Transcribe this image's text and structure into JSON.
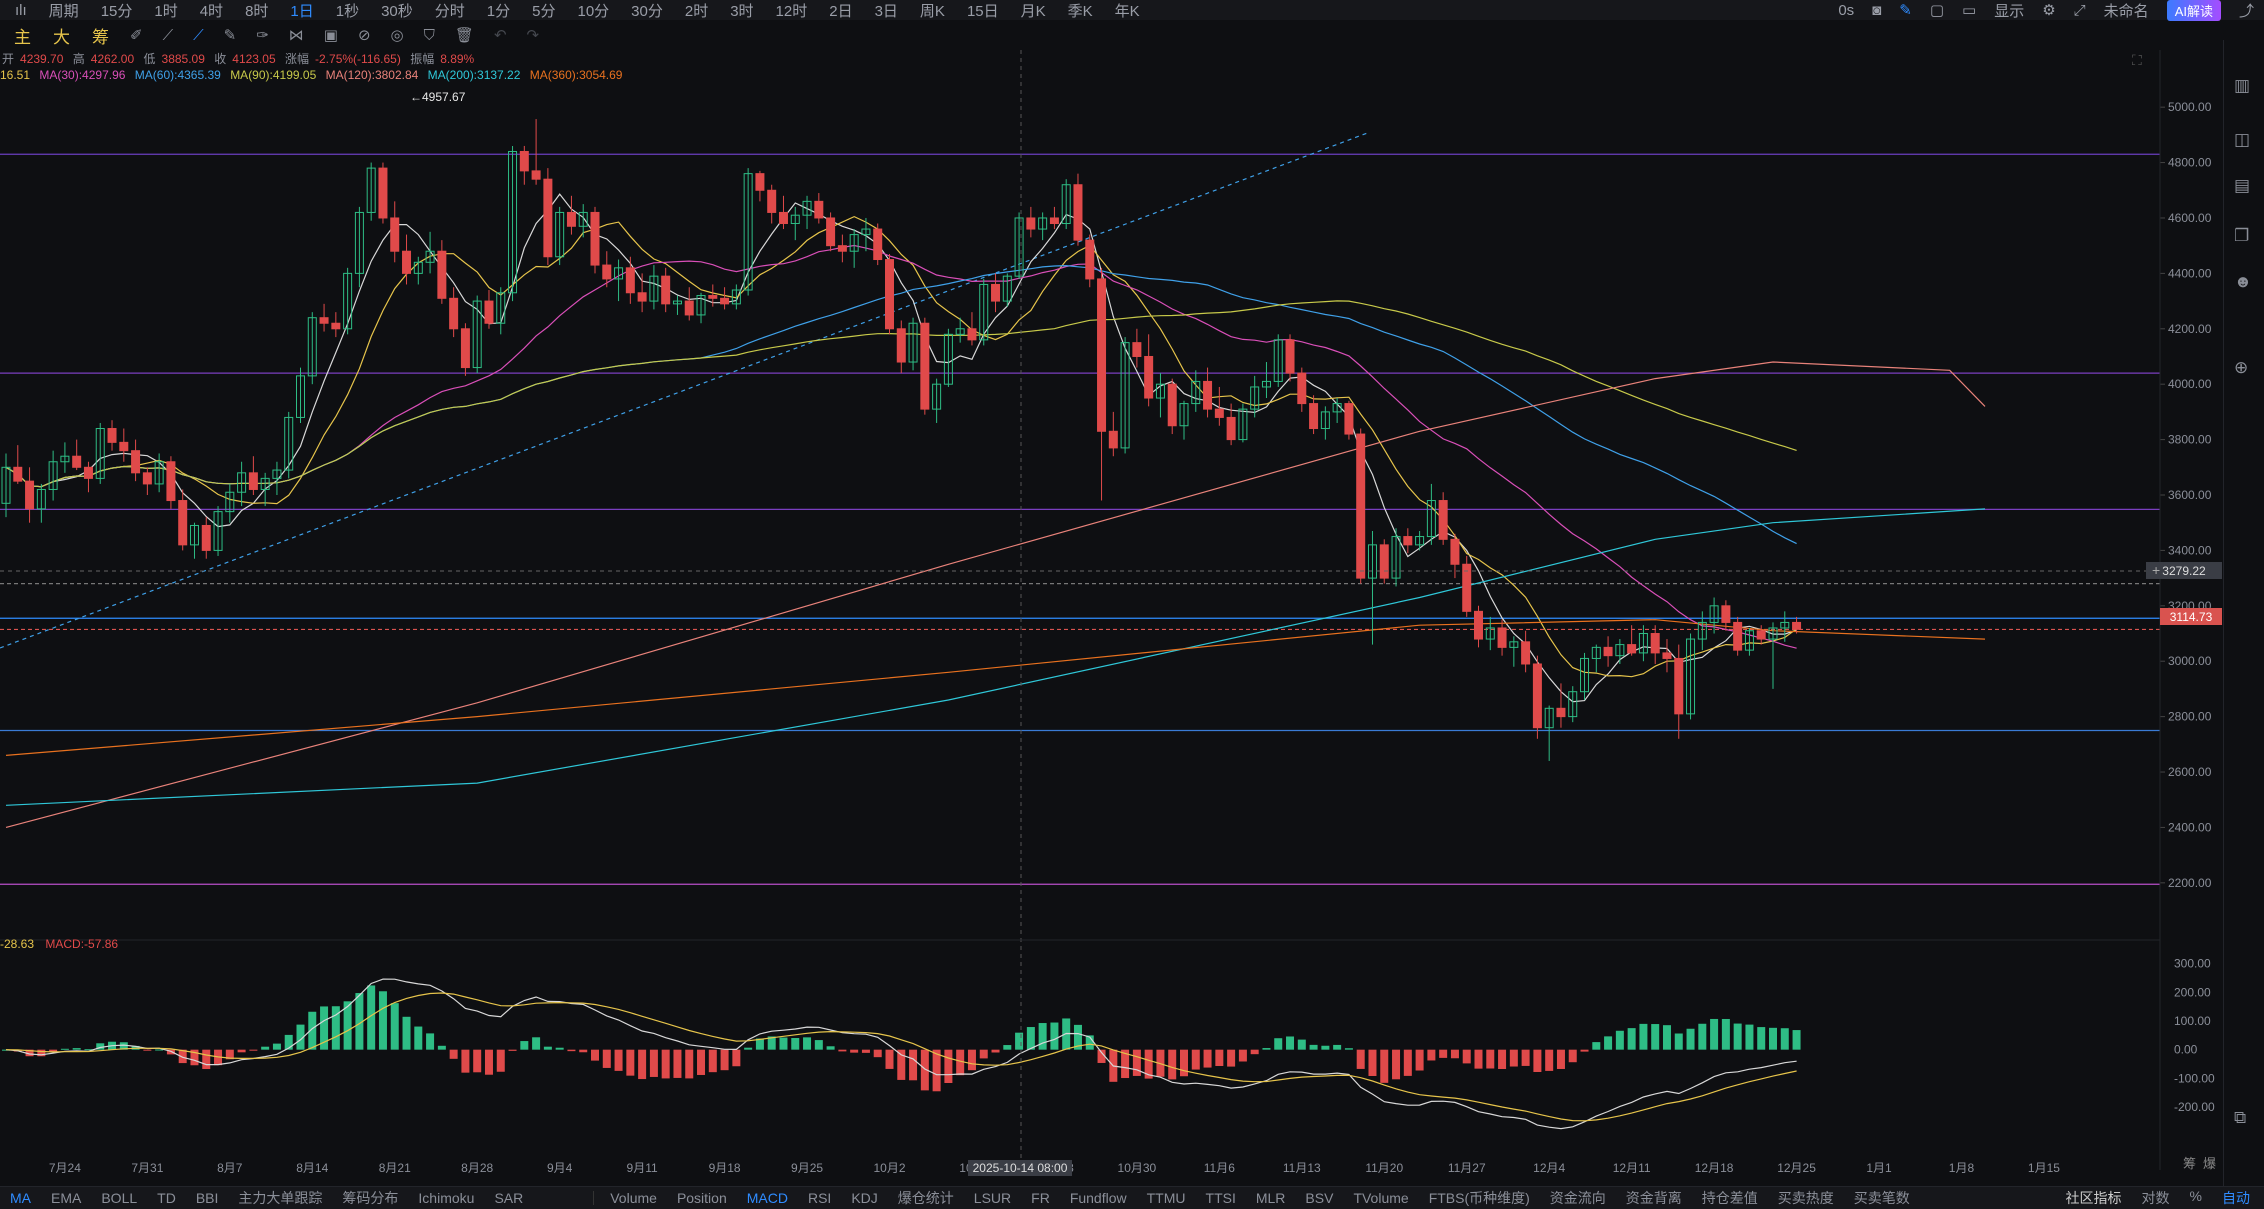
{
  "topbar": {
    "items": [
      "周期",
      "15分",
      "1时",
      "4时",
      "8时",
      "1日",
      "1秒",
      "30秒",
      "分时",
      "1分",
      "5分",
      "10分",
      "30分",
      "2时",
      "3时",
      "12时",
      "2日",
      "3日",
      "周K",
      "15日",
      "月K",
      "季K",
      "年K"
    ],
    "active": "1日",
    "right": {
      "timer": "0s",
      "display": "显示",
      "unnamed": "未命名",
      "ai": "AI解读"
    }
  },
  "toolbar2": {
    "labels": [
      "主",
      "大",
      "筹"
    ]
  },
  "ohlc": {
    "open_label": "开",
    "open": "4239.70",
    "high_label": "高",
    "high": "4262.00",
    "low_label": "低",
    "low": "3885.09",
    "close_label": "收",
    "close": "4123.05",
    "chg_label": "涨幅",
    "chg": "-2.75%(-116.65)",
    "amp_label": "振幅",
    "amp": "8.89%"
  },
  "ma_legend": [
    {
      "text": "16.51",
      "color": "#e6c44b"
    },
    {
      "text": "MA(30):4297.96",
      "color": "#d94fb8"
    },
    {
      "text": "MA(60):4365.39",
      "color": "#3fa0e8"
    },
    {
      "text": "MA(90):4199.05",
      "color": "#c7c94a"
    },
    {
      "text": "MA(120):3802.84",
      "color": "#e8827a"
    },
    {
      "text": "MA(200):3137.22",
      "color": "#2fc7d8"
    },
    {
      "text": "MA(360):3054.69",
      "color": "#e8711f"
    }
  ],
  "macd_legend": [
    {
      "text": "-28.63",
      "color": "#e6c44b"
    },
    {
      "text": "MACD:-57.86",
      "color": "#e04a4a"
    }
  ],
  "chart": {
    "high_marker": "4957.67",
    "crosshair_date": "2025-10-14 08:00",
    "cursor_price": "3279.22",
    "last_price": "3114.73",
    "price_ticks": [
      "5000.00",
      "4800.00",
      "4600.00",
      "4400.00",
      "4200.00",
      "4000.00",
      "3800.00",
      "3600.00",
      "3400.00",
      "3200.00",
      "3000.00",
      "2800.00",
      "2600.00",
      "2400.00",
      "2200.00"
    ],
    "macd_ticks": [
      "300.00",
      "200.00",
      "100.00",
      "0.00",
      "-100.00",
      "-200.00"
    ],
    "date_ticks": [
      "7月24",
      "7月31",
      "8月7",
      "8月14",
      "8月21",
      "8月28",
      "9月4",
      "9月11",
      "9月18",
      "9月25",
      "10月2",
      "10月",
      "10月23",
      "10月30",
      "11月6",
      "11月13",
      "11月20",
      "11月27",
      "12月4",
      "12月11",
      "12月18",
      "12月25",
      "1月1",
      "1月8",
      "1月15"
    ],
    "corner": [
      "筹",
      "爆"
    ]
  },
  "chart_data": {
    "type": "candlestick",
    "ylim": [
      2120,
      5080
    ],
    "start": "2025-07-19",
    "candles": [
      [
        3570,
        3750,
        3520,
        3700
      ],
      [
        3700,
        3780,
        3640,
        3650
      ],
      [
        3650,
        3700,
        3500,
        3550
      ],
      [
        3550,
        3640,
        3500,
        3620
      ],
      [
        3620,
        3760,
        3580,
        3720
      ],
      [
        3720,
        3790,
        3680,
        3740
      ],
      [
        3740,
        3800,
        3690,
        3700
      ],
      [
        3700,
        3720,
        3610,
        3660
      ],
      [
        3660,
        3860,
        3640,
        3840
      ],
      [
        3840,
        3870,
        3760,
        3790
      ],
      [
        3790,
        3840,
        3720,
        3760
      ],
      [
        3760,
        3800,
        3650,
        3680
      ],
      [
        3680,
        3700,
        3600,
        3640
      ],
      [
        3640,
        3750,
        3610,
        3720
      ],
      [
        3720,
        3740,
        3550,
        3580
      ],
      [
        3580,
        3620,
        3400,
        3420
      ],
      [
        3420,
        3500,
        3370,
        3490
      ],
      [
        3490,
        3520,
        3370,
        3400
      ],
      [
        3400,
        3560,
        3380,
        3540
      ],
      [
        3540,
        3640,
        3500,
        3610
      ],
      [
        3610,
        3720,
        3560,
        3680
      ],
      [
        3680,
        3740,
        3600,
        3620
      ],
      [
        3620,
        3680,
        3560,
        3660
      ],
      [
        3660,
        3720,
        3600,
        3690
      ],
      [
        3690,
        3900,
        3660,
        3880
      ],
      [
        3880,
        4060,
        3860,
        4030
      ],
      [
        4030,
        4260,
        4000,
        4240
      ],
      [
        4240,
        4290,
        4190,
        4220
      ],
      [
        4220,
        4260,
        4170,
        4200
      ],
      [
        4200,
        4420,
        4180,
        4400
      ],
      [
        4400,
        4640,
        4350,
        4620
      ],
      [
        4620,
        4800,
        4590,
        4780
      ],
      [
        4780,
        4800,
        4580,
        4600
      ],
      [
        4600,
        4660,
        4440,
        4480
      ],
      [
        4480,
        4540,
        4360,
        4400
      ],
      [
        4400,
        4460,
        4360,
        4440
      ],
      [
        4440,
        4550,
        4400,
        4480
      ],
      [
        4480,
        4520,
        4290,
        4310
      ],
      [
        4310,
        4350,
        4170,
        4200
      ],
      [
        4200,
        4220,
        4030,
        4060
      ],
      [
        4060,
        4320,
        4040,
        4300
      ],
      [
        4300,
        4340,
        4200,
        4220
      ],
      [
        4220,
        4350,
        4180,
        4330
      ],
      [
        4330,
        4860,
        4300,
        4840
      ],
      [
        4840,
        4860,
        4720,
        4770
      ],
      [
        4770,
        4957,
        4720,
        4740
      ],
      [
        4740,
        4780,
        4430,
        4460
      ],
      [
        4460,
        4640,
        4430,
        4620
      ],
      [
        4620,
        4680,
        4540,
        4570
      ],
      [
        4570,
        4650,
        4530,
        4620
      ],
      [
        4620,
        4640,
        4400,
        4430
      ],
      [
        4430,
        4480,
        4350,
        4380
      ],
      [
        4380,
        4450,
        4300,
        4420
      ],
      [
        4420,
        4460,
        4290,
        4330
      ],
      [
        4330,
        4400,
        4260,
        4300
      ],
      [
        4300,
        4430,
        4270,
        4390
      ],
      [
        4390,
        4420,
        4260,
        4290
      ],
      [
        4290,
        4320,
        4250,
        4300
      ],
      [
        4300,
        4350,
        4230,
        4250
      ],
      [
        4250,
        4330,
        4220,
        4320
      ],
      [
        4320,
        4360,
        4280,
        4310
      ],
      [
        4310,
        4350,
        4270,
        4290
      ],
      [
        4290,
        4360,
        4270,
        4340
      ],
      [
        4340,
        4780,
        4320,
        4760
      ],
      [
        4760,
        4770,
        4660,
        4700
      ],
      [
        4700,
        4720,
        4580,
        4620
      ],
      [
        4620,
        4680,
        4560,
        4580
      ],
      [
        4580,
        4640,
        4520,
        4610
      ],
      [
        4610,
        4680,
        4560,
        4660
      ],
      [
        4660,
        4690,
        4580,
        4600
      ],
      [
        4600,
        4620,
        4480,
        4500
      ],
      [
        4500,
        4540,
        4440,
        4480
      ],
      [
        4480,
        4560,
        4420,
        4540
      ],
      [
        4540,
        4600,
        4480,
        4560
      ],
      [
        4560,
        4580,
        4430,
        4450
      ],
      [
        4450,
        4470,
        4180,
        4200
      ],
      [
        4200,
        4230,
        4040,
        4080
      ],
      [
        4080,
        4240,
        4050,
        4220
      ],
      [
        4220,
        4240,
        3890,
        3910
      ],
      [
        3910,
        4020,
        3860,
        4000
      ],
      [
        4000,
        4200,
        3990,
        4180
      ],
      [
        4180,
        4240,
        4150,
        4200
      ],
      [
        4200,
        4260,
        4140,
        4160
      ],
      [
        4160,
        4380,
        4140,
        4360
      ],
      [
        4360,
        4400,
        4260,
        4300
      ],
      [
        4300,
        4400,
        4280,
        4390
      ],
      [
        4390,
        4620,
        4380,
        4600
      ],
      [
        4600,
        4640,
        4530,
        4560
      ],
      [
        4560,
        4620,
        4520,
        4600
      ],
      [
        4600,
        4640,
        4560,
        4580
      ],
      [
        4580,
        4740,
        4560,
        4720
      ],
      [
        4720,
        4760,
        4500,
        4520
      ],
      [
        4520,
        4540,
        4350,
        4380
      ],
      [
        4380,
        4420,
        3580,
        3830
      ],
      [
        3830,
        3900,
        3740,
        3770
      ],
      [
        3770,
        4170,
        3750,
        4150
      ],
      [
        4150,
        4200,
        4060,
        4100
      ],
      [
        4100,
        4180,
        3920,
        3950
      ],
      [
        3950,
        4040,
        3880,
        4000
      ],
      [
        4000,
        4020,
        3820,
        3850
      ],
      [
        3850,
        3940,
        3800,
        3930
      ],
      [
        3930,
        4050,
        3900,
        4010
      ],
      [
        4010,
        4060,
        3880,
        3910
      ],
      [
        3910,
        3990,
        3850,
        3880
      ],
      [
        3880,
        3930,
        3780,
        3800
      ],
      [
        3800,
        3930,
        3790,
        3910
      ],
      [
        3910,
        4030,
        3880,
        3990
      ],
      [
        3990,
        4080,
        3950,
        4010
      ],
      [
        4010,
        4180,
        3990,
        4160
      ],
      [
        4160,
        4180,
        4010,
        4040
      ],
      [
        4040,
        4060,
        3900,
        3930
      ],
      [
        3930,
        3960,
        3820,
        3840
      ],
      [
        3840,
        3920,
        3800,
        3900
      ],
      [
        3900,
        3950,
        3860,
        3930
      ],
      [
        3930,
        3940,
        3800,
        3820
      ],
      [
        3820,
        3840,
        3280,
        3300
      ],
      [
        3300,
        3470,
        3060,
        3420
      ],
      [
        3420,
        3440,
        3280,
        3300
      ],
      [
        3300,
        3480,
        3270,
        3450
      ],
      [
        3450,
        3480,
        3390,
        3420
      ],
      [
        3420,
        3470,
        3400,
        3450
      ],
      [
        3450,
        3640,
        3420,
        3580
      ],
      [
        3580,
        3610,
        3420,
        3440
      ],
      [
        3440,
        3460,
        3300,
        3350
      ],
      [
        3350,
        3380,
        3160,
        3180
      ],
      [
        3180,
        3200,
        3050,
        3080
      ],
      [
        3080,
        3160,
        3040,
        3120
      ],
      [
        3120,
        3150,
        3020,
        3050
      ],
      [
        3050,
        3090,
        2980,
        3070
      ],
      [
        3070,
        3110,
        2960,
        2990
      ],
      [
        2990,
        3020,
        2720,
        2760
      ],
      [
        2760,
        2840,
        2640,
        2830
      ],
      [
        2830,
        2920,
        2760,
        2800
      ],
      [
        2800,
        2910,
        2780,
        2890
      ],
      [
        2890,
        3030,
        2860,
        3010
      ],
      [
        3010,
        3060,
        2960,
        3050
      ],
      [
        3050,
        3090,
        2980,
        3020
      ],
      [
        3020,
        3080,
        2990,
        3060
      ],
      [
        3060,
        3130,
        3020,
        3030
      ],
      [
        3030,
        3130,
        3000,
        3100
      ],
      [
        3100,
        3130,
        2990,
        3030
      ],
      [
        3030,
        3080,
        2960,
        3010
      ],
      [
        3010,
        3060,
        2720,
        2810
      ],
      [
        2810,
        3100,
        2790,
        3080
      ],
      [
        3080,
        3180,
        3040,
        3140
      ],
      [
        3140,
        3230,
        3100,
        3200
      ],
      [
        3200,
        3220,
        3110,
        3140
      ],
      [
        3140,
        3160,
        3020,
        3040
      ],
      [
        3040,
        3120,
        3020,
        3110
      ],
      [
        3110,
        3130,
        3060,
        3080
      ],
      [
        3080,
        3140,
        2900,
        3120
      ],
      [
        3120,
        3180,
        3070,
        3140
      ],
      [
        3140,
        3160,
        3100,
        3115
      ]
    ],
    "hlines": [
      {
        "price": 4830,
        "color": "#6a3fbf"
      },
      {
        "price": 4040,
        "color": "#7a3fbf"
      },
      {
        "price": 3548,
        "color": "#7a3fbf"
      },
      {
        "price": 3280,
        "color": "#777",
        "dash": true
      },
      {
        "price": 3155,
        "color": "#2f8cff"
      },
      {
        "price": 3114.73,
        "color": "#d9534f",
        "dash": true
      },
      {
        "price": 2750,
        "color": "#3a7bd5"
      },
      {
        "price": 2195,
        "color": "#b84fc8"
      }
    ]
  },
  "bottombar": {
    "left": [
      "MA",
      "EMA",
      "BOLL",
      "TD",
      "BBI",
      "主力大单跟踪",
      "筹码分布",
      "Ichimoku",
      "SAR"
    ],
    "right": [
      "Volume",
      "Position",
      "MACD",
      "RSI",
      "KDJ",
      "爆仓统计",
      "LSUR",
      "FR",
      "Fundflow",
      "TTMU",
      "TTSI",
      "MLR",
      "BSV",
      "TVolume",
      "FTBS(币种维度)",
      "资金流向",
      "资金背离",
      "持仓差值",
      "买卖热度",
      "买卖笔数"
    ],
    "active": [
      "MA",
      "MACD"
    ],
    "tail": [
      "社区指标",
      "对数",
      "%",
      "自动"
    ]
  }
}
